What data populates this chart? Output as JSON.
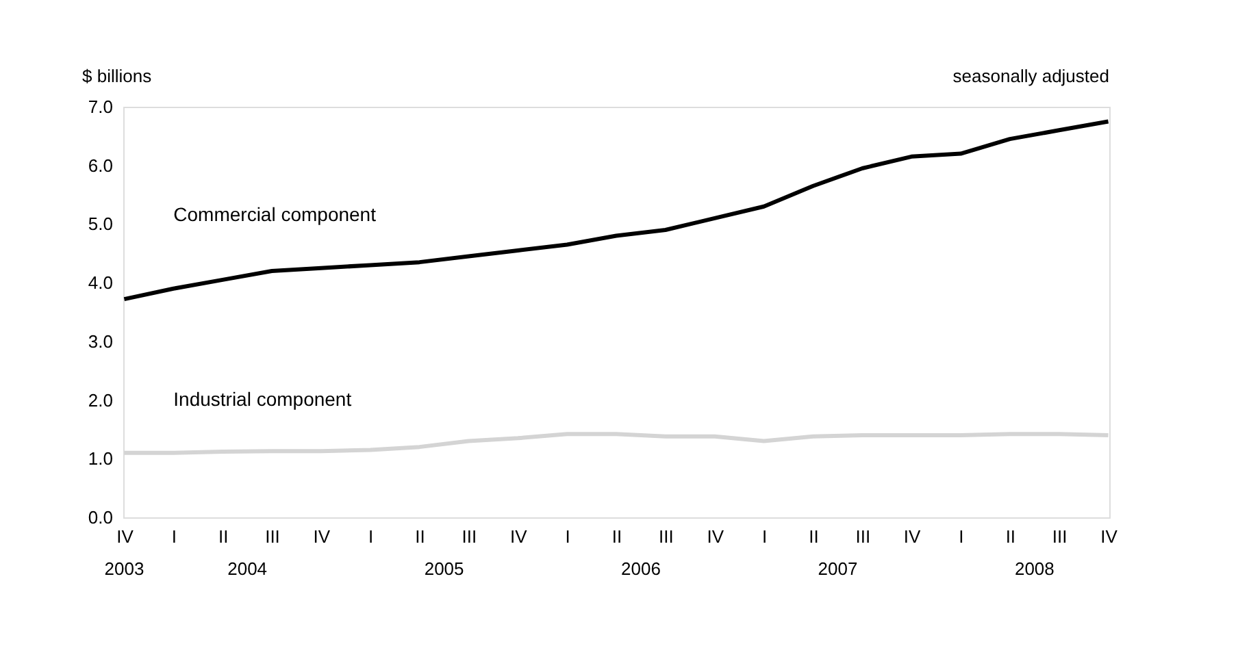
{
  "chart_data": {
    "type": "line",
    "ylabel": "$ billions",
    "subtitle": "seasonally adjusted",
    "categories": [
      "IV",
      "I",
      "II",
      "III",
      "IV",
      "I",
      "II",
      "III",
      "IV",
      "I",
      "II",
      "III",
      "IV",
      "I",
      "II",
      "III",
      "IV",
      "I",
      "II",
      "III",
      "IV"
    ],
    "annotations": [
      "2003",
      "2004",
      "2005",
      "2006",
      "2007",
      "2008"
    ],
    "series": [
      {
        "name": "Commercial component",
        "color": "#000000",
        "values": [
          3.72,
          3.9,
          4.05,
          4.2,
          4.25,
          4.3,
          4.35,
          4.45,
          4.55,
          4.65,
          4.8,
          4.9,
          5.1,
          5.3,
          5.65,
          5.95,
          6.15,
          6.2,
          6.45,
          6.6,
          6.75
        ]
      },
      {
        "name": "Industrial component",
        "color": "#d4d4d4",
        "values": [
          1.1,
          1.1,
          1.12,
          1.13,
          1.13,
          1.15,
          1.2,
          1.3,
          1.35,
          1.42,
          1.42,
          1.38,
          1.38,
          1.3,
          1.38,
          1.4,
          1.4,
          1.4,
          1.42,
          1.42,
          1.4
        ]
      }
    ],
    "ylim": [
      0,
      7
    ],
    "yticks": [
      {
        "value": 0,
        "label": "0.0"
      },
      {
        "value": 1,
        "label": "1.0"
      },
      {
        "value": 2,
        "label": "2.0"
      },
      {
        "value": 3,
        "label": "3.0"
      },
      {
        "value": 4,
        "label": "4.0"
      },
      {
        "value": 5,
        "label": "5.0"
      },
      {
        "value": 6,
        "label": "6.0"
      },
      {
        "value": 7,
        "label": "7.0"
      }
    ],
    "grid": false,
    "marker": "none",
    "line_style": "solid"
  }
}
